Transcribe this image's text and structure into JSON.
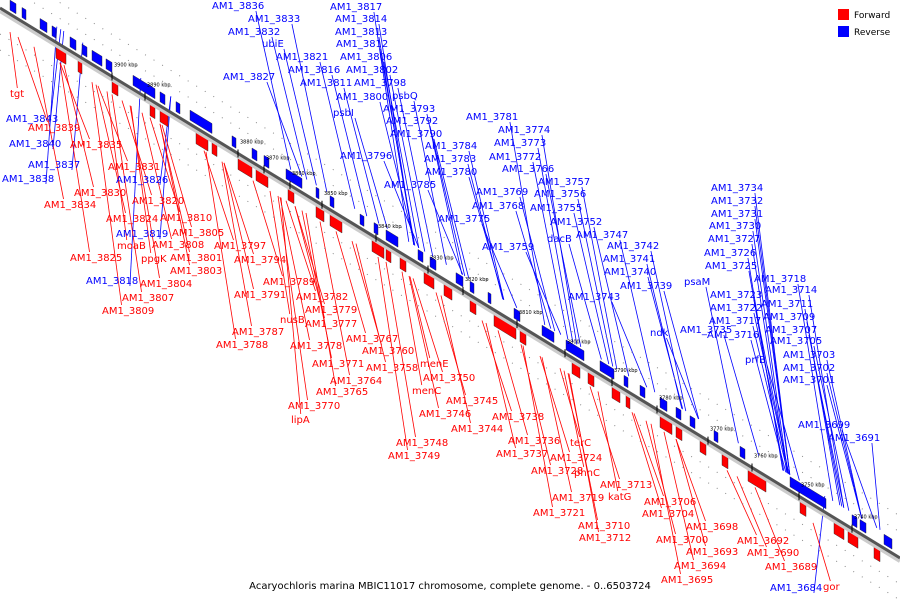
{
  "caption": "Acaryochloris marina MBIC11017 chromosome, complete genome. - 0..6503724",
  "legend": {
    "forward_label": "Forward",
    "reverse_label": "Reverse",
    "forward_color": "#ff0000",
    "reverse_color": "#0000ff"
  },
  "ticks": [
    "3900 kbp",
    "3890 kbp",
    "3880 kbp",
    "3870 kbp",
    "3860 kbp",
    "3850 kbp",
    "3840 kbp",
    "3830 kbp",
    "3820 kbp",
    "3810 kbp",
    "3800 kbp",
    "3790 kbp",
    "3780 kbp",
    "3770 kbp",
    "3760 kbp",
    "3750 kbp",
    "3740 kbp"
  ],
  "reverse_labels": [
    "AM1_3836",
    "AM1_3833",
    "AM1_3832",
    "AM1_3817",
    "AM1_3814",
    "AM1_3813",
    "AM1_3812",
    "ubiE",
    "AM1_3821",
    "AM1_3806",
    "AM1_3816",
    "AM1_3802",
    "AM1_3827",
    "AM1_3811",
    "AM1_3798",
    "AM1_3800",
    "psbQ",
    "AM1_3793",
    "psbI",
    "AM1_3792",
    "AM1_3843",
    "AM1_3790",
    "AM1_3781",
    "AM1_3840",
    "AM1_3774",
    "AM1_3784",
    "AM1_3773",
    "AM1_3796",
    "AM1_3783",
    "AM1_3772",
    "AM1_3837",
    "AM1_3780",
    "AM1_3766",
    "AM1_3838",
    "AM1_3826",
    "AM1_3785",
    "AM1_3757",
    "AM1_3769",
    "AM1_3756",
    "AM1_3768",
    "AM1_3755",
    "AM1_3775",
    "AM1_3752",
    "AM1_3819",
    "dacB",
    "AM1_3747",
    "AM1_3759",
    "AM1_3742",
    "AM1_3741",
    "AM1_3740",
    "AM1_3818",
    "AM1_3739",
    "AM1_3743",
    "AM1_3734",
    "AM1_3732",
    "AM1_3731",
    "AM1_3730",
    "AM1_3727",
    "AM1_3726",
    "AM1_3725",
    "AM1_3718",
    "AM1_3714",
    "AM1_3723",
    "AM1_3711",
    "AM1_3722",
    "AM1_3709",
    "AM1_3717",
    "AM1_3707",
    "AM1_3716",
    "AM1_3705",
    "psaM",
    "ndk",
    "AM1_3735",
    "prfB",
    "AM1_3703",
    "AM1_3702",
    "AM1_3701",
    "AM1_3699",
    "AM1_3691",
    "AM1_3684"
  ],
  "forward_labels": [
    "tgt",
    "AM1_3839",
    "AM1_3835",
    "AM1_3831",
    "AM1_3830",
    "AM1_3834",
    "AM1_3820",
    "AM1_3824",
    "AM1_3810",
    "AM1_3805",
    "moaB",
    "AM1_3808",
    "AM1_3797",
    "AM1_3825",
    "ppgK",
    "AM1_3801",
    "AM1_3794",
    "AM1_3803",
    "AM1_3804",
    "AM1_3807",
    "AM1_3809",
    "AM1_3789",
    "AM1_3791",
    "AM1_3782",
    "AM1_3779",
    "nusB",
    "AM1_3777",
    "AM1_3787",
    "AM1_3788",
    "AM1_3778",
    "AM1_3767",
    "AM1_3760",
    "AM1_3771",
    "AM1_3758",
    "menE",
    "AM1_3764",
    "AM1_3750",
    "AM1_3765",
    "menC",
    "AM1_3770",
    "AM1_3745",
    "AM1_3746",
    "lipA",
    "AM1_3744",
    "AM1_3738",
    "AM1_3748",
    "AM1_3736",
    "AM1_3749",
    "AM1_3737",
    "terC",
    "AM1_3724",
    "AM1_3728",
    "phnC",
    "AM1_3713",
    "AM1_3719",
    "katG",
    "AM1_3706",
    "AM1_3721",
    "AM1_3704",
    "AM1_3710",
    "AM1_3712",
    "AM1_3698",
    "AM1_3700",
    "AM1_3692",
    "AM1_3693",
    "AM1_3694",
    "AM1_3690",
    "AM1_3689",
    "AM1_3695",
    "gor"
  ]
}
